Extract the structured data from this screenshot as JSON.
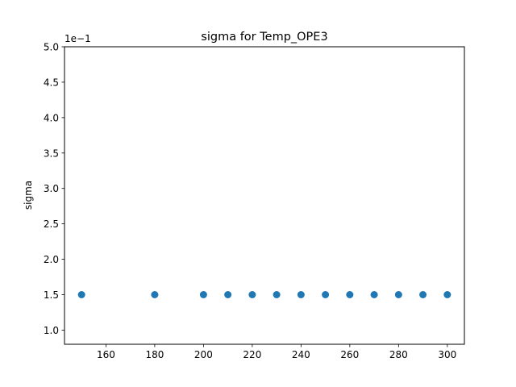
{
  "chart_data": {
    "type": "scatter",
    "title": "sigma for Temp_OPE3",
    "xlabel": "",
    "ylabel": "sigma",
    "y_offset_label": "1e−1",
    "y_scale_factor": 0.1,
    "xlim": [
      143,
      307
    ],
    "ylim": [
      0.08,
      0.5
    ],
    "x_ticks": [
      160,
      180,
      200,
      220,
      240,
      260,
      280,
      300
    ],
    "y_ticks": [
      0.1,
      0.15,
      0.2,
      0.25,
      0.3,
      0.35,
      0.4,
      0.45,
      0.5
    ],
    "y_tick_labels": [
      "1.0",
      "1.5",
      "2.0",
      "2.5",
      "3.0",
      "3.5",
      "4.0",
      "4.5",
      "5.0"
    ],
    "grid": false,
    "marker_color": "#1f77b4",
    "points": [
      {
        "x": 150,
        "y": 0.15
      },
      {
        "x": 180,
        "y": 0.15
      },
      {
        "x": 200,
        "y": 0.15
      },
      {
        "x": 210,
        "y": 0.15
      },
      {
        "x": 220,
        "y": 0.15
      },
      {
        "x": 230,
        "y": 0.15
      },
      {
        "x": 240,
        "y": 0.15
      },
      {
        "x": 250,
        "y": 0.15
      },
      {
        "x": 260,
        "y": 0.15
      },
      {
        "x": 270,
        "y": 0.15
      },
      {
        "x": 280,
        "y": 0.15
      },
      {
        "x": 290,
        "y": 0.15
      },
      {
        "x": 300,
        "y": 0.15
      }
    ]
  }
}
